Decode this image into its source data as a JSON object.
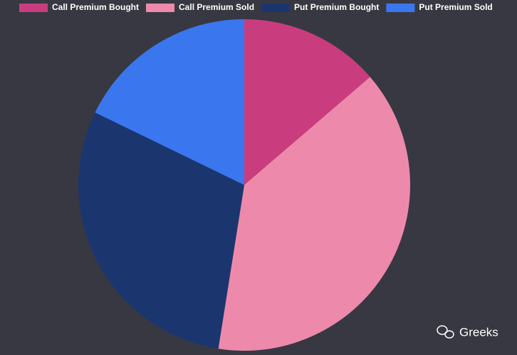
{
  "chart_data": {
    "type": "pie",
    "categories": [
      "Call Premium Bought",
      "Call Premium Sold",
      "Put Premium Bought",
      "Put Premium Sold"
    ],
    "values": [
      13.7,
      38.8,
      29.7,
      17.8
    ],
    "colors": [
      "#c93d7e",
      "#ed8aab",
      "#1b366f",
      "#3a77ee"
    ],
    "legend": "top",
    "watermark": "Greeks"
  }
}
